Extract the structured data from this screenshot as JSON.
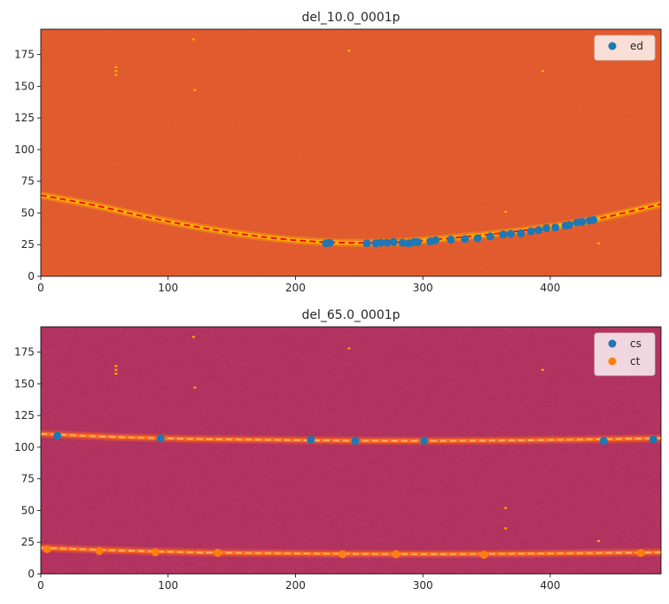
{
  "chart_data": [
    {
      "type": "scatter",
      "title": "del_10.0_0001p",
      "xlabel": "",
      "ylabel": "",
      "xlim": [
        0,
        487
      ],
      "ylim": [
        0,
        195
      ],
      "xticks": [
        0,
        100,
        200,
        300,
        400
      ],
      "yticks": [
        0,
        25,
        50,
        75,
        100,
        125,
        150,
        175
      ],
      "grid": false,
      "legend_position": "top-right",
      "background_color": "#e15b2e",
      "band_color": "#ffb300",
      "fit_line_color": "#ee1010",
      "hot_pixels": [
        [
          120,
          187
        ],
        [
          242,
          178
        ],
        [
          59,
          165
        ],
        [
          59,
          162
        ],
        [
          59,
          159
        ],
        [
          394,
          162
        ],
        [
          121,
          147
        ],
        [
          365,
          51
        ],
        [
          438,
          26
        ]
      ],
      "curves": [
        {
          "style": "band+dashed",
          "x": [
            0,
            40,
            80,
            120,
            160,
            200,
            240,
            280,
            320,
            360,
            400,
            440,
            487
          ],
          "y": [
            64,
            56.5,
            47.5,
            39.5,
            33,
            28.5,
            26.5,
            27,
            30,
            34,
            39,
            46,
            57
          ]
        }
      ],
      "series": [
        {
          "name": "ed",
          "color": "#1f77b4",
          "x": [
            224,
            227,
            256,
            263,
            267,
            272,
            277,
            284,
            289,
            293,
            296,
            306,
            310,
            322,
            333,
            343,
            353,
            363,
            369,
            377,
            385,
            391,
            397,
            404,
            412,
            415,
            421,
            425,
            431,
            434
          ],
          "y": [
            26,
            26.5,
            26,
            26,
            26.5,
            26.5,
            27,
            26.5,
            26,
            27,
            27,
            27.5,
            28.5,
            29,
            29.5,
            30,
            31.5,
            33,
            33.5,
            34,
            35.5,
            36.5,
            38,
            38.5,
            40,
            40.5,
            42.5,
            43,
            44,
            44.5
          ]
        }
      ]
    },
    {
      "type": "scatter",
      "title": "del_65.0_0001p",
      "xlabel": "",
      "ylabel": "",
      "xlim": [
        0,
        487
      ],
      "ylim": [
        0,
        195
      ],
      "xticks": [
        0,
        100,
        200,
        300,
        400
      ],
      "yticks": [
        0,
        25,
        50,
        75,
        100,
        125,
        150,
        175
      ],
      "grid": false,
      "legend_position": "top-right",
      "background_color": "#b23360",
      "band_color": "#ff6a1a",
      "fit_line_color": "#ffb067",
      "hot_pixels": [
        [
          120,
          187
        ],
        [
          242,
          178
        ],
        [
          59,
          164
        ],
        [
          59,
          161
        ],
        [
          59,
          158
        ],
        [
          394,
          161
        ],
        [
          121,
          147
        ],
        [
          365,
          52
        ],
        [
          365,
          36
        ],
        [
          438,
          26
        ]
      ],
      "curves": [
        {
          "style": "band+dashed",
          "x": [
            0,
            60,
            120,
            180,
            240,
            300,
            360,
            420,
            487
          ],
          "y": [
            110.5,
            108,
            106.5,
            105.8,
            105.2,
            105,
            105.3,
            106,
            107
          ]
        },
        {
          "style": "band+dashed",
          "x": [
            0,
            60,
            120,
            180,
            240,
            300,
            360,
            420,
            487
          ],
          "y": [
            20.5,
            18.5,
            17,
            16.3,
            15.8,
            15.6,
            15.8,
            16.3,
            17
          ]
        }
      ],
      "series": [
        {
          "name": "cs",
          "color": "#1f77b4",
          "x": [
            13,
            94,
            212,
            247,
            301,
            442,
            481
          ],
          "y": [
            109,
            107,
            106,
            105,
            105,
            105,
            106
          ]
        },
        {
          "name": "ct",
          "color": "#ff7f0e",
          "x": [
            5,
            46,
            90,
            139,
            237,
            279,
            348,
            471
          ],
          "y": [
            19.5,
            18,
            17,
            16.5,
            15.5,
            15.5,
            15,
            16.5
          ]
        }
      ]
    }
  ]
}
